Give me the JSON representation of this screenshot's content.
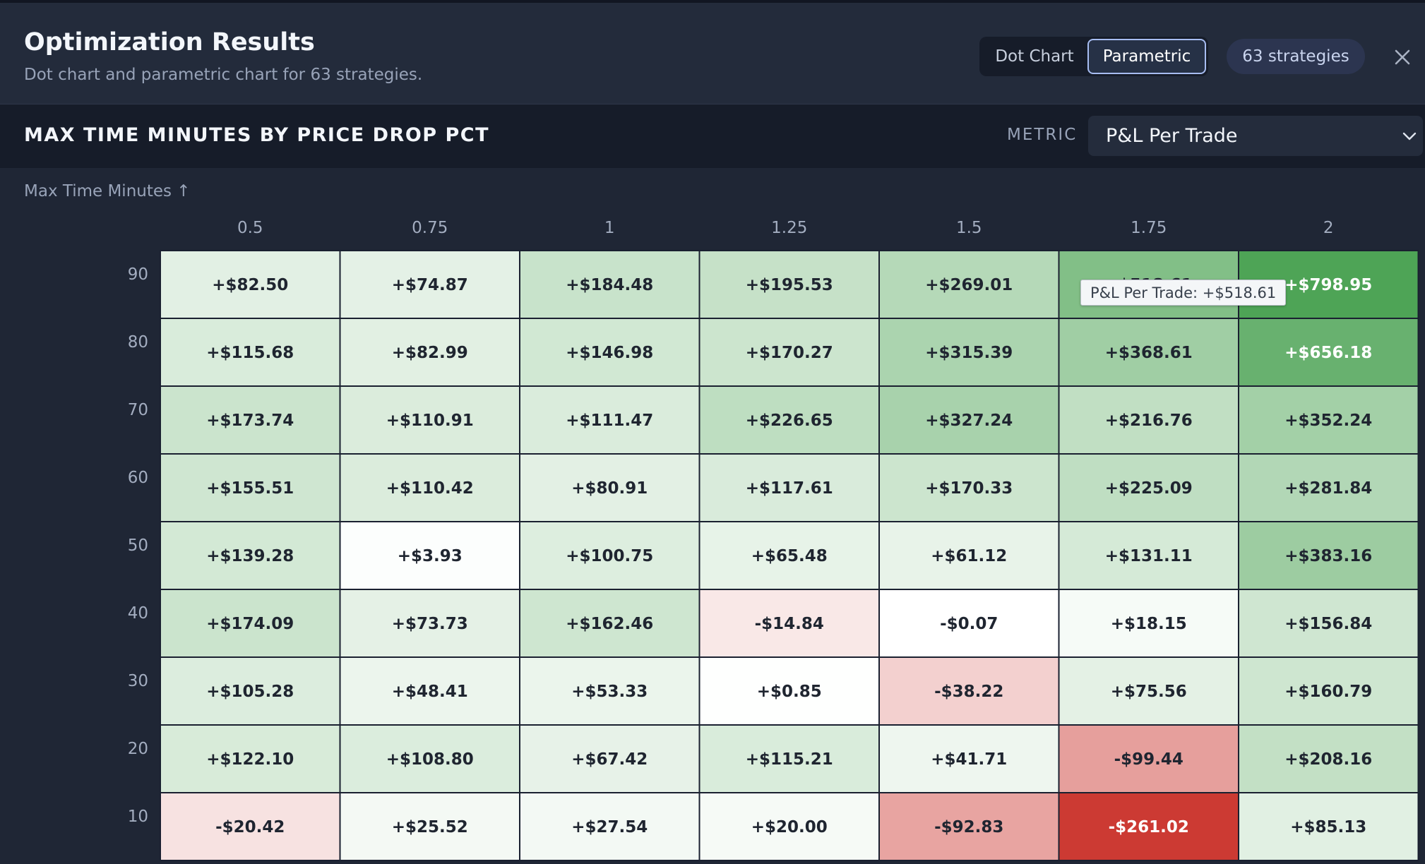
{
  "header": {
    "title": "Optimization Results",
    "subtitle": "Dot chart and parametric chart for 63 strategies.",
    "tabs": [
      {
        "label": "Dot Chart",
        "active": false
      },
      {
        "label": "Parametric",
        "active": true
      }
    ],
    "strategy_count": "63 strategies",
    "close_icon": "close-icon"
  },
  "toolbar": {
    "chart_title": "MAX TIME MINUTES BY PRICE DROP PCT",
    "metric_label": "METRIC",
    "metric_value": "P&L Per Trade",
    "metric_icon": "chevron-down-icon"
  },
  "colors": {
    "positive_max": "#4ea456",
    "negative_max": "#cc3a33",
    "neutral": "#ffffff"
  },
  "chart_data": {
    "type": "heatmap",
    "title": "MAX TIME MINUTES BY PRICE DROP PCT",
    "metric": "P&L Per Trade",
    "ylabel": "Max Time Minutes ↑",
    "x": [
      "0.5",
      "0.75",
      "1",
      "1.25",
      "1.5",
      "1.75",
      "2"
    ],
    "y": [
      "90",
      "80",
      "70",
      "60",
      "50",
      "40",
      "30",
      "20",
      "10"
    ],
    "values": [
      [
        82.5,
        74.87,
        184.48,
        195.53,
        269.01,
        518.61,
        798.95
      ],
      [
        115.68,
        82.99,
        146.98,
        170.27,
        315.39,
        368.61,
        656.18
      ],
      [
        173.74,
        110.91,
        111.47,
        226.65,
        327.24,
        216.76,
        352.24
      ],
      [
        155.51,
        110.42,
        80.91,
        117.61,
        170.33,
        225.09,
        281.84
      ],
      [
        139.28,
        3.93,
        100.75,
        65.48,
        61.12,
        131.11,
        383.16
      ],
      [
        174.09,
        73.73,
        162.46,
        -14.84,
        -0.07,
        18.15,
        156.84
      ],
      [
        105.28,
        48.41,
        53.33,
        0.85,
        -38.22,
        75.56,
        160.79
      ],
      [
        122.1,
        108.8,
        67.42,
        115.21,
        41.71,
        -99.44,
        208.16
      ],
      [
        -20.42,
        25.52,
        27.54,
        20.0,
        -92.83,
        -261.02,
        85.13
      ]
    ],
    "labels": [
      [
        "+$82.50",
        "+$74.87",
        "+$184.48",
        "+$195.53",
        "+$269.01",
        "+$518.61",
        "+$798.95"
      ],
      [
        "+$115.68",
        "+$82.99",
        "+$146.98",
        "+$170.27",
        "+$315.39",
        "+$368.61",
        "+$656.18"
      ],
      [
        "+$173.74",
        "+$110.91",
        "+$111.47",
        "+$226.65",
        "+$327.24",
        "+$216.76",
        "+$352.24"
      ],
      [
        "+$155.51",
        "+$110.42",
        "+$80.91",
        "+$117.61",
        "+$170.33",
        "+$225.09",
        "+$281.84"
      ],
      [
        "+$139.28",
        "+$3.93",
        "+$100.75",
        "+$65.48",
        "+$61.12",
        "+$131.11",
        "+$383.16"
      ],
      [
        "+$174.09",
        "+$73.73",
        "+$162.46",
        "-$14.84",
        "-$0.07",
        "+$18.15",
        "+$156.84"
      ],
      [
        "+$105.28",
        "+$48.41",
        "+$53.33",
        "+$0.85",
        "-$38.22",
        "+$75.56",
        "+$160.79"
      ],
      [
        "+$122.10",
        "+$108.80",
        "+$67.42",
        "+$115.21",
        "+$41.71",
        "-$99.44",
        "+$208.16"
      ],
      [
        "-$20.42",
        "+$25.52",
        "+$27.54",
        "+$20.00",
        "-$92.83",
        "-$261.02",
        "+$85.13"
      ]
    ],
    "tooltip": "P&L Per Trade: +$518.61",
    "hovered_cell": {
      "row": 0,
      "col": 5
    }
  }
}
